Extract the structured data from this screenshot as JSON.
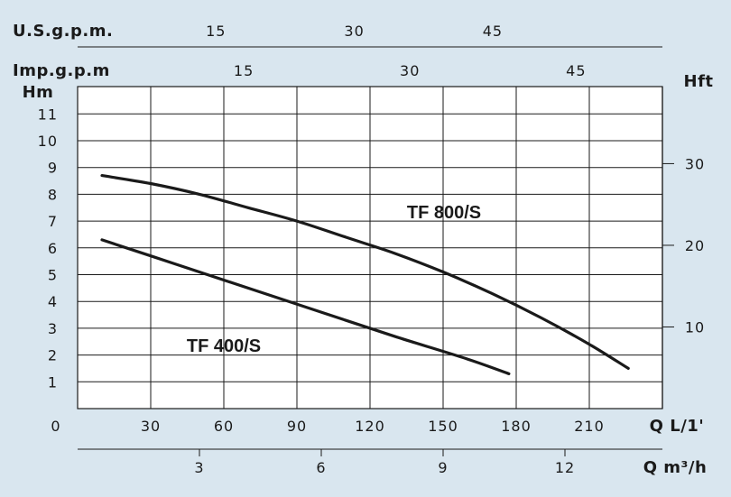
{
  "chart_data": {
    "type": "line",
    "xlabel": "Q L/1'",
    "ylabel": "Hm",
    "xlim": [
      0,
      240
    ],
    "ylim": [
      0,
      11.7
    ],
    "grid": true,
    "x_ticks": [
      0,
      30,
      60,
      90,
      120,
      150,
      180,
      210
    ],
    "x_tick_labels": [
      "0",
      "30",
      "60",
      "90",
      "120",
      "150",
      "180",
      "210"
    ],
    "y_ticks": [
      1,
      2,
      3,
      4,
      5,
      6,
      7,
      8,
      9,
      10,
      11
    ],
    "y_tick_labels": [
      "1",
      "2",
      "3",
      "4",
      "5",
      "6",
      "7",
      "8",
      "9",
      "10",
      "11"
    ],
    "y2_axis": {
      "label": "Hft",
      "ticks": [
        10,
        20,
        30
      ],
      "tick_labels": [
        "10",
        "20",
        "30"
      ]
    },
    "top_axis_usgpm": {
      "label": "U.S.g.p.m.",
      "ticks": [
        15,
        30,
        45
      ],
      "tick_labels": [
        "15",
        "30",
        "45"
      ]
    },
    "top_axis_impgpm": {
      "label": "Imp.g.p.m",
      "ticks": [
        15,
        30,
        45
      ],
      "tick_labels": [
        "15",
        "30",
        "45"
      ]
    },
    "bottom_axis_m3h": {
      "label": "Q m³/h",
      "ticks": [
        3,
        6,
        9,
        12
      ],
      "tick_labels": [
        "3",
        "6",
        "9",
        "12"
      ]
    },
    "series": [
      {
        "name": "TF 800/S",
        "x": [
          10,
          30,
          50,
          70,
          90,
          110,
          130,
          150,
          170,
          190,
          210,
          226
        ],
        "y": [
          8.7,
          8.4,
          8.0,
          7.5,
          7.0,
          6.4,
          5.8,
          5.1,
          4.3,
          3.4,
          2.4,
          1.5
        ]
      },
      {
        "name": "TF 400/S",
        "x": [
          10,
          40,
          70,
          100,
          130,
          160,
          177
        ],
        "y": [
          6.3,
          5.4,
          4.5,
          3.6,
          2.7,
          1.85,
          1.3
        ]
      }
    ]
  }
}
